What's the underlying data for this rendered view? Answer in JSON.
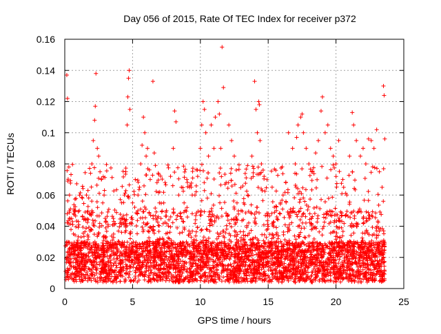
{
  "chart_data": {
    "type": "scatter",
    "title": "Day 056 of 2015, Rate Of TEC Index for receiver p372",
    "xlabel": "GPS time / hours",
    "ylabel": "ROTI / TECUs",
    "xlim": [
      0,
      25
    ],
    "ylim": [
      0,
      0.16
    ],
    "x_ticks": [
      0,
      5,
      10,
      15,
      20,
      25
    ],
    "x_tick_labels": [
      "0",
      "5",
      "10",
      "15",
      "20",
      "25"
    ],
    "y_ticks": [
      0,
      0.02,
      0.04,
      0.06,
      0.08,
      0.1,
      0.12,
      0.14,
      0.16
    ],
    "y_tick_labels": [
      "0",
      "0.02",
      "0.04",
      "0.06",
      "0.08",
      "0.1",
      "0.12",
      "0.14",
      "0.16"
    ],
    "grid": true,
    "marker": "+",
    "color": "#ff0000",
    "series": [
      {
        "points": [
          [
            0.15,
            0.137
          ],
          [
            0.2,
            0.122
          ],
          [
            0.3,
            0.078
          ],
          [
            0.35,
            0.06
          ],
          [
            0.5,
            0.045
          ],
          [
            0.8,
            0.05
          ],
          [
            1.0,
            0.043
          ],
          [
            1.3,
            0.058
          ],
          [
            1.6,
            0.06
          ],
          [
            1.9,
            0.074
          ],
          [
            2.0,
            0.08
          ],
          [
            2.1,
            0.095
          ],
          [
            2.2,
            0.108
          ],
          [
            2.25,
            0.117
          ],
          [
            2.3,
            0.138
          ],
          [
            2.4,
            0.09
          ],
          [
            2.5,
            0.085
          ],
          [
            2.6,
            0.075
          ],
          [
            2.7,
            0.07
          ],
          [
            2.8,
            0.055
          ],
          [
            2.9,
            0.06
          ],
          [
            3.2,
            0.04
          ],
          [
            3.6,
            0.035
          ],
          [
            4.0,
            0.03
          ],
          [
            4.2,
            0.045
          ],
          [
            4.4,
            0.06
          ],
          [
            4.5,
            0.075
          ],
          [
            4.6,
            0.105
          ],
          [
            4.65,
            0.123
          ],
          [
            4.7,
            0.135
          ],
          [
            4.75,
            0.14
          ],
          [
            4.8,
            0.115
          ],
          [
            5.0,
            0.055
          ],
          [
            5.2,
            0.07
          ],
          [
            5.4,
            0.06
          ],
          [
            5.6,
            0.08
          ],
          [
            5.7,
            0.092
          ],
          [
            5.8,
            0.11
          ],
          [
            5.9,
            0.1
          ],
          [
            6.0,
            0.085
          ],
          [
            6.1,
            0.09
          ],
          [
            6.3,
            0.07
          ],
          [
            6.5,
            0.133
          ],
          [
            6.6,
            0.087
          ],
          [
            6.8,
            0.068
          ],
          [
            7.0,
            0.062
          ],
          [
            7.3,
            0.055
          ],
          [
            7.5,
            0.05
          ],
          [
            7.8,
            0.072
          ],
          [
            8.0,
            0.09
          ],
          [
            8.1,
            0.114
          ],
          [
            8.2,
            0.107
          ],
          [
            8.4,
            0.06
          ],
          [
            8.6,
            0.065
          ],
          [
            8.8,
            0.055
          ],
          [
            9.0,
            0.07
          ],
          [
            9.2,
            0.065
          ],
          [
            9.4,
            0.06
          ],
          [
            9.6,
            0.06
          ],
          [
            9.8,
            0.072
          ],
          [
            10.0,
            0.09
          ],
          [
            10.1,
            0.105
          ],
          [
            10.2,
            0.12
          ],
          [
            10.3,
            0.115
          ],
          [
            10.4,
            0.1
          ],
          [
            10.6,
            0.085
          ],
          [
            10.8,
            0.105
          ],
          [
            11.0,
            0.09
          ],
          [
            11.1,
            0.11
          ],
          [
            11.3,
            0.12
          ],
          [
            11.4,
            0.112
          ],
          [
            11.5,
            0.09
          ],
          [
            11.6,
            0.155
          ],
          [
            11.7,
            0.129
          ],
          [
            11.9,
            0.068
          ],
          [
            12.1,
            0.105
          ],
          [
            12.3,
            0.095
          ],
          [
            12.5,
            0.085
          ],
          [
            12.7,
            0.055
          ],
          [
            13.0,
            0.05
          ],
          [
            13.2,
            0.055
          ],
          [
            13.5,
            0.06
          ],
          [
            13.8,
            0.085
          ],
          [
            14.0,
            0.133
          ],
          [
            14.1,
            0.115
          ],
          [
            14.2,
            0.1
          ],
          [
            14.3,
            0.12
          ],
          [
            14.35,
            0.118
          ],
          [
            14.4,
            0.095
          ],
          [
            14.5,
            0.08
          ],
          [
            14.7,
            0.072
          ],
          [
            15.0,
            0.04
          ],
          [
            15.3,
            0.035
          ],
          [
            15.6,
            0.05
          ],
          [
            15.9,
            0.055
          ],
          [
            16.1,
            0.06
          ],
          [
            16.3,
            0.068
          ],
          [
            16.5,
            0.1
          ],
          [
            16.8,
            0.09
          ],
          [
            17.0,
            0.08
          ],
          [
            17.1,
            0.097
          ],
          [
            17.2,
            0.105
          ],
          [
            17.4,
            0.11
          ],
          [
            17.5,
            0.112
          ],
          [
            17.6,
            0.1
          ],
          [
            17.8,
            0.09
          ],
          [
            18.0,
            0.08
          ],
          [
            18.2,
            0.075
          ],
          [
            18.5,
            0.087
          ],
          [
            18.7,
            0.095
          ],
          [
            18.9,
            0.114
          ],
          [
            19.0,
            0.123
          ],
          [
            19.2,
            0.1
          ],
          [
            19.4,
            0.105
          ],
          [
            19.6,
            0.09
          ],
          [
            19.8,
            0.085
          ],
          [
            20.0,
            0.08
          ],
          [
            20.2,
            0.095
          ],
          [
            20.5,
            0.07
          ],
          [
            20.8,
            0.06
          ],
          [
            21.0,
            0.085
          ],
          [
            21.2,
            0.113
          ],
          [
            21.3,
            0.105
          ],
          [
            21.5,
            0.095
          ],
          [
            21.8,
            0.085
          ],
          [
            22.0,
            0.09
          ],
          [
            22.2,
            0.08
          ],
          [
            22.4,
            0.096
          ],
          [
            22.6,
            0.095
          ],
          [
            22.8,
            0.09
          ],
          [
            23.0,
            0.102
          ],
          [
            23.2,
            0.075
          ],
          [
            23.4,
            0.065
          ],
          [
            23.5,
            0.13
          ],
          [
            23.55,
            0.124
          ],
          [
            23.6,
            0.096
          ]
        ]
      }
    ]
  }
}
